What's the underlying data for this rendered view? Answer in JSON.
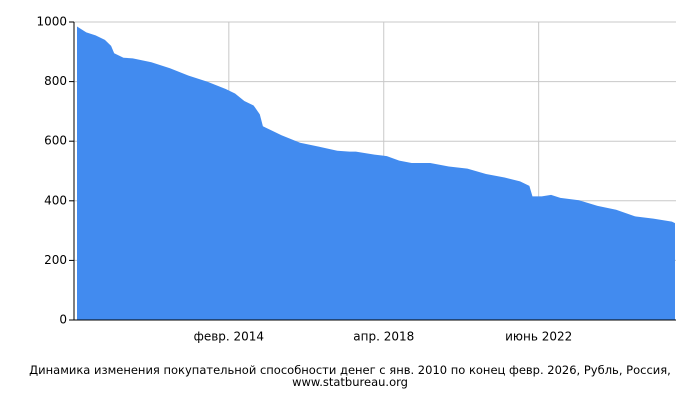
{
  "chart_data": {
    "type": "area",
    "caption": "Динамика изменения покупательной способности денег с янв. 2010 по конец февр. 2026, Рубль, Россия, www.statbureau.org",
    "x": [
      "2010-01",
      "2010-04",
      "2010-07",
      "2010-10",
      "2010-12",
      "2011-01",
      "2011-04",
      "2011-07",
      "2012-01",
      "2012-07",
      "2013-01",
      "2013-07",
      "2014-01",
      "2014-04",
      "2014-07",
      "2014-10",
      "2014-12",
      "2015-01",
      "2015-04",
      "2015-07",
      "2016-01",
      "2016-07",
      "2017-01",
      "2017-05",
      "2017-07",
      "2018-01",
      "2018-05",
      "2018-09",
      "2019-01",
      "2019-07",
      "2020-01",
      "2020-07",
      "2021-01",
      "2021-07",
      "2021-12",
      "2022-03",
      "2022-04",
      "2022-07",
      "2022-10",
      "2023-01",
      "2023-07",
      "2024-01",
      "2024-07",
      "2025-01",
      "2025-07",
      "2026-01",
      "2026-02"
    ],
    "values": [
      985,
      965,
      955,
      940,
      920,
      895,
      880,
      878,
      865,
      845,
      820,
      800,
      775,
      760,
      735,
      720,
      690,
      650,
      635,
      620,
      595,
      582,
      568,
      565,
      565,
      555,
      550,
      535,
      527,
      527,
      515,
      508,
      490,
      478,
      465,
      450,
      415,
      415,
      420,
      410,
      402,
      383,
      370,
      348,
      340,
      330,
      325
    ],
    "color": "#428bef",
    "xlim": [
      "2010-01",
      "2026-02"
    ],
    "xticks": [
      {
        "value": "2014-02",
        "label": "февр. 2014"
      },
      {
        "value": "2018-04",
        "label": "апр. 2018"
      },
      {
        "value": "2022-06",
        "label": "июнь 2022"
      }
    ],
    "ylim": [
      0,
      1000
    ],
    "yticks": [
      0,
      200,
      400,
      600,
      800,
      1000
    ],
    "grid": true
  }
}
